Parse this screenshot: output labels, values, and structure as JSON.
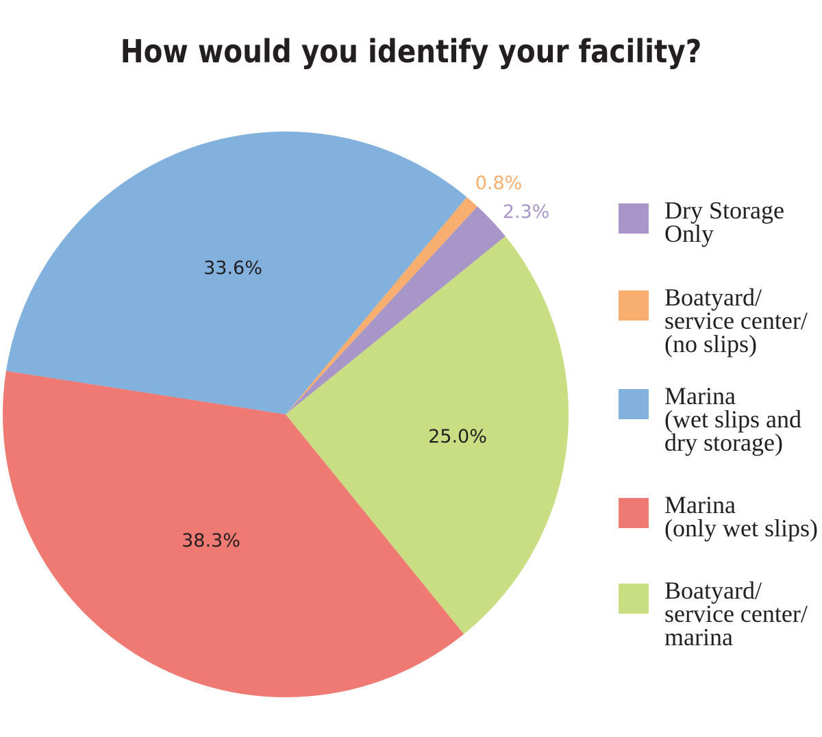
{
  "title": "How would you identify your facility?",
  "chart_data": {
    "type": "pie",
    "title": "How would you identify your facility?",
    "categories": [
      "Dry Storage Only",
      "Boatyard/ service center/ (no slips)",
      "Marina (wet slips and dry storage)",
      "Marina (only wet slips)",
      "Boatyard/ service center/ marina"
    ],
    "values": [
      2.3,
      0.8,
      33.6,
      38.3,
      25.0
    ],
    "labels": [
      "2.3%",
      "0.8%",
      "33.6%",
      "38.3%",
      "25.0%"
    ],
    "colors": [
      "#a896c8",
      "#f7ae6e",
      "#82b1de",
      "#ee7a73",
      "#c9dd82"
    ],
    "legend_position": "right",
    "unit": "%"
  },
  "legend": [
    {
      "label": "Dry Storage\nOnly",
      "color": "#a896c8"
    },
    {
      "label": "Boatyard/\nservice center/\n(no slips)",
      "color": "#f7ae6e"
    },
    {
      "label": "Marina\n(wet slips and\ndry storage)",
      "color": "#82b1de"
    },
    {
      "label": "Marina\n(only wet slips)",
      "color": "#ee7a73"
    },
    {
      "label": "Boatyard/\nservice center/\nmarina",
      "color": "#c9dd82"
    }
  ],
  "slice_labels": {
    "dry_storage": {
      "text": "2.3%",
      "color": "#a896c8"
    },
    "boatyard_no_slips": {
      "text": "0.8%",
      "color": "#f7ae6e"
    },
    "marina_wet_dry": {
      "text": "33.6%",
      "color": "#231f20"
    },
    "marina_wet_only": {
      "text": "38.3%",
      "color": "#231f20"
    },
    "boatyard_marina": {
      "text": "25.0%",
      "color": "#231f20"
    }
  }
}
